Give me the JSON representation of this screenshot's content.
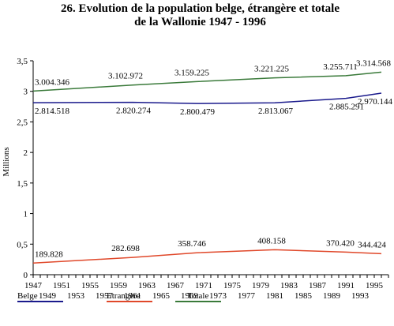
{
  "chart_data": {
    "type": "line",
    "title_line1": "26.  Evolution de la population belge, étrangère et totale",
    "title_line2": "de la Wallonie 1947 - 1996",
    "ylabel": "Millions",
    "xlabel": "",
    "ylim": [
      0,
      3.5
    ],
    "xlim": [
      1947,
      1997
    ],
    "y_ticks": [
      "0",
      "0,5",
      "1",
      "1,5",
      "2",
      "2,5",
      "3",
      "3,5"
    ],
    "x_ticks_top": [
      "1947",
      "1951",
      "1955",
      "1959",
      "1963",
      "1967",
      "1971",
      "1975",
      "1979",
      "1983",
      "1987",
      "1991",
      "1995"
    ],
    "x_ticks_bottom": [
      "1949",
      "1953",
      "1957",
      "1961",
      "1965",
      "1969",
      "1973",
      "1977",
      "1981",
      "1985",
      "1989",
      "1993"
    ],
    "grid": false,
    "legend_placement": "bottom",
    "series": [
      {
        "name": "Belge",
        "color": "#1a1a8c",
        "x": [
          1947,
          1961,
          1970,
          1981,
          1991,
          1996
        ],
        "values": [
          2.814518,
          2.820274,
          2.800479,
          2.813067,
          2.885291,
          2.970144
        ],
        "labels": [
          "2.814.518",
          "2.820.274",
          "2.800.479",
          "2.813.067",
          "2.885.291",
          "2.970.144"
        ]
      },
      {
        "name": "Etrangère",
        "color": "#e0482a",
        "x": [
          1947,
          1961,
          1970,
          1981,
          1991,
          1996
        ],
        "values": [
          0.189828,
          0.282698,
          0.358746,
          0.408158,
          0.37042,
          0.344424
        ],
        "labels": [
          "189.828",
          "282.698",
          "358.746",
          "408.158",
          "370.420",
          "344.424"
        ]
      },
      {
        "name": "Totale",
        "color": "#3a7a3a",
        "x": [
          1947,
          1961,
          1970,
          1981,
          1991,
          1996
        ],
        "values": [
          3.004346,
          3.102972,
          3.159225,
          3.221225,
          3.255711,
          3.314568
        ],
        "labels": [
          "3.004.346",
          "3.102.972",
          "3.159.225",
          "3.221.225",
          "3.255.711",
          "3.314.568"
        ]
      }
    ]
  }
}
